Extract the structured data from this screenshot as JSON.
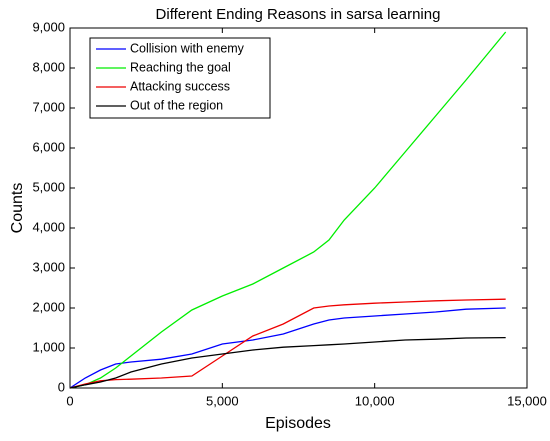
{
  "chart_data": {
    "type": "line",
    "title": "Different Ending Reasons in sarsa learning",
    "x_label": "Episodes",
    "y_label": "Counts",
    "x": [
      0,
      500,
      1000,
      1500,
      2000,
      3000,
      4000,
      5000,
      6000,
      7000,
      8000,
      8500,
      9000,
      10000,
      11000,
      12000,
      13000,
      14300
    ],
    "series": [
      {
        "name": "Collision with enemy",
        "color": "#0000ff",
        "values": [
          0,
          250,
          450,
          600,
          650,
          720,
          850,
          1100,
          1200,
          1350,
          1600,
          1700,
          1750,
          1800,
          1850,
          1900,
          1970,
          2000
        ]
      },
      {
        "name": "Reaching the goal",
        "color": "#00ee00",
        "values": [
          0,
          80,
          250,
          500,
          800,
          1400,
          1950,
          2300,
          2600,
          3000,
          3400,
          3700,
          4200,
          5000,
          5900,
          6800,
          7700,
          8900
        ]
      },
      {
        "name": "Attacking success",
        "color": "#ee0000",
        "values": [
          0,
          100,
          180,
          210,
          220,
          250,
          300,
          800,
          1300,
          1600,
          2000,
          2050,
          2080,
          2120,
          2150,
          2180,
          2200,
          2220
        ]
      },
      {
        "name": "Out of the region",
        "color": "#000000",
        "values": [
          0,
          80,
          150,
          250,
          400,
          600,
          750,
          850,
          950,
          1020,
          1060,
          1080,
          1100,
          1150,
          1200,
          1220,
          1250,
          1260
        ]
      }
    ],
    "xlim": [
      0,
      15000
    ],
    "xticks": [
      0,
      {
        "value": 5000,
        "label": "5,000"
      },
      {
        "value": 10000,
        "label": "10,000"
      },
      {
        "value": 15000,
        "label": "15,000"
      }
    ],
    "ylim": [
      0,
      9000
    ],
    "yticks": [
      0,
      {
        "value": 1000,
        "label": "1,000"
      },
      {
        "value": 2000,
        "label": "2,000"
      },
      {
        "value": 3000,
        "label": "3,000"
      },
      {
        "value": 4000,
        "label": "4,000"
      },
      {
        "value": 5000,
        "label": "5,000"
      },
      {
        "value": 6000,
        "label": "6,000"
      },
      {
        "value": 7000,
        "label": "7,000"
      },
      {
        "value": 8000,
        "label": "8,000"
      },
      {
        "value": 9000,
        "label": "9,000"
      }
    ],
    "legend": "upper left",
    "grid": false
  }
}
